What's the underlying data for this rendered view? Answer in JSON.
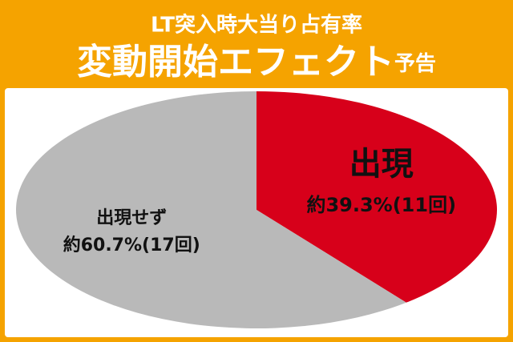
{
  "chart_data": {
    "type": "pie",
    "title": "LT突入時大当り占有率",
    "subtitle": [
      "変動開始エフェクト",
      "予告"
    ],
    "categories": [
      "出現",
      "出現せず"
    ],
    "values": [
      39.3,
      60.7
    ],
    "value_labels": [
      "約39.3%(11回)",
      "約60.7%(17回)"
    ],
    "colors": [
      "#d7001a",
      "#b9b9b9"
    ]
  }
}
